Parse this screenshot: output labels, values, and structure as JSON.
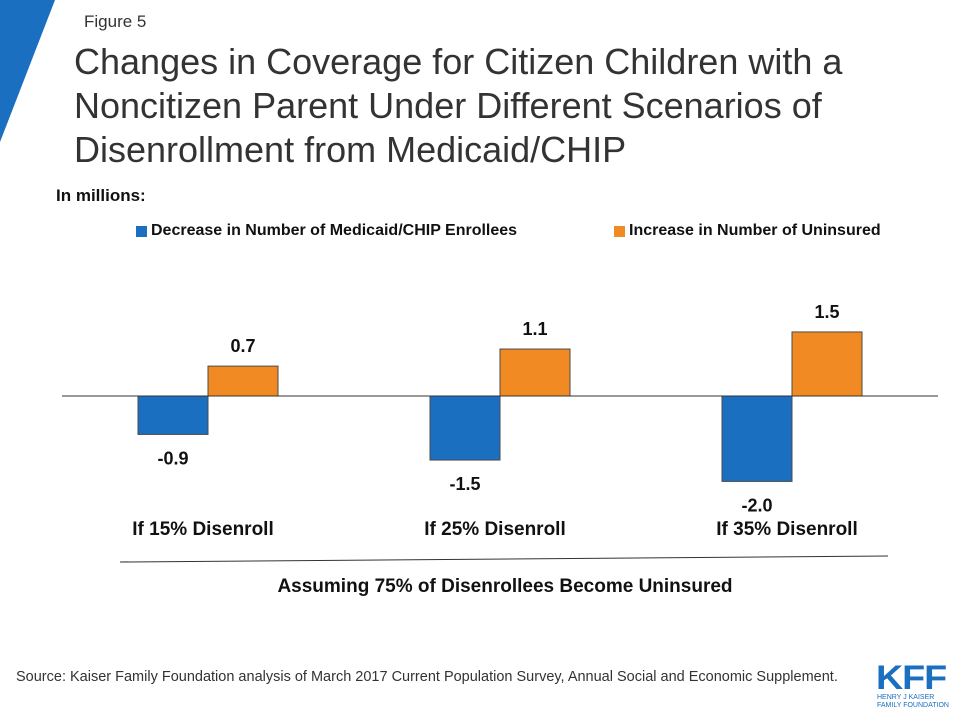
{
  "figure_label": "Figure 5",
  "chart_data": {
    "type": "bar",
    "title": "Changes in Coverage for Citizen Children with a Noncitizen Parent Under Different Scenarios of Disenrollment from Medicaid/CHIP",
    "units_label": "In millions:",
    "categories": [
      "If 15% Disenroll",
      "If 25% Disenroll",
      "If 35% Disenroll"
    ],
    "series": [
      {
        "name": "Decrease in Number of Medicaid/CHIP Enrollees",
        "values": [
          -0.9,
          -1.5,
          -2.0
        ],
        "labels": [
          "-0.9",
          "-1.5",
          "-2.0"
        ],
        "color": "#1a6fc1"
      },
      {
        "name": "Increase in Number of Uninsured",
        "values": [
          0.7,
          1.1,
          1.5
        ],
        "labels": [
          "0.7",
          "1.1",
          "1.5"
        ],
        "color": "#f28a23"
      }
    ],
    "legend_position": "top",
    "grid": false,
    "note": "Assuming 75% of Disenrollees Become Uninsured"
  },
  "source": "Source: Kaiser Family Foundation analysis of March 2017 Current Population Survey, Annual Social and Economic Supplement.",
  "logo": {
    "text": "KFF",
    "line1": "HENRY J KAISER",
    "line2": "FAMILY FOUNDATION",
    "color": "#1a6fc1"
  },
  "accent_color": "#1a6fc1"
}
